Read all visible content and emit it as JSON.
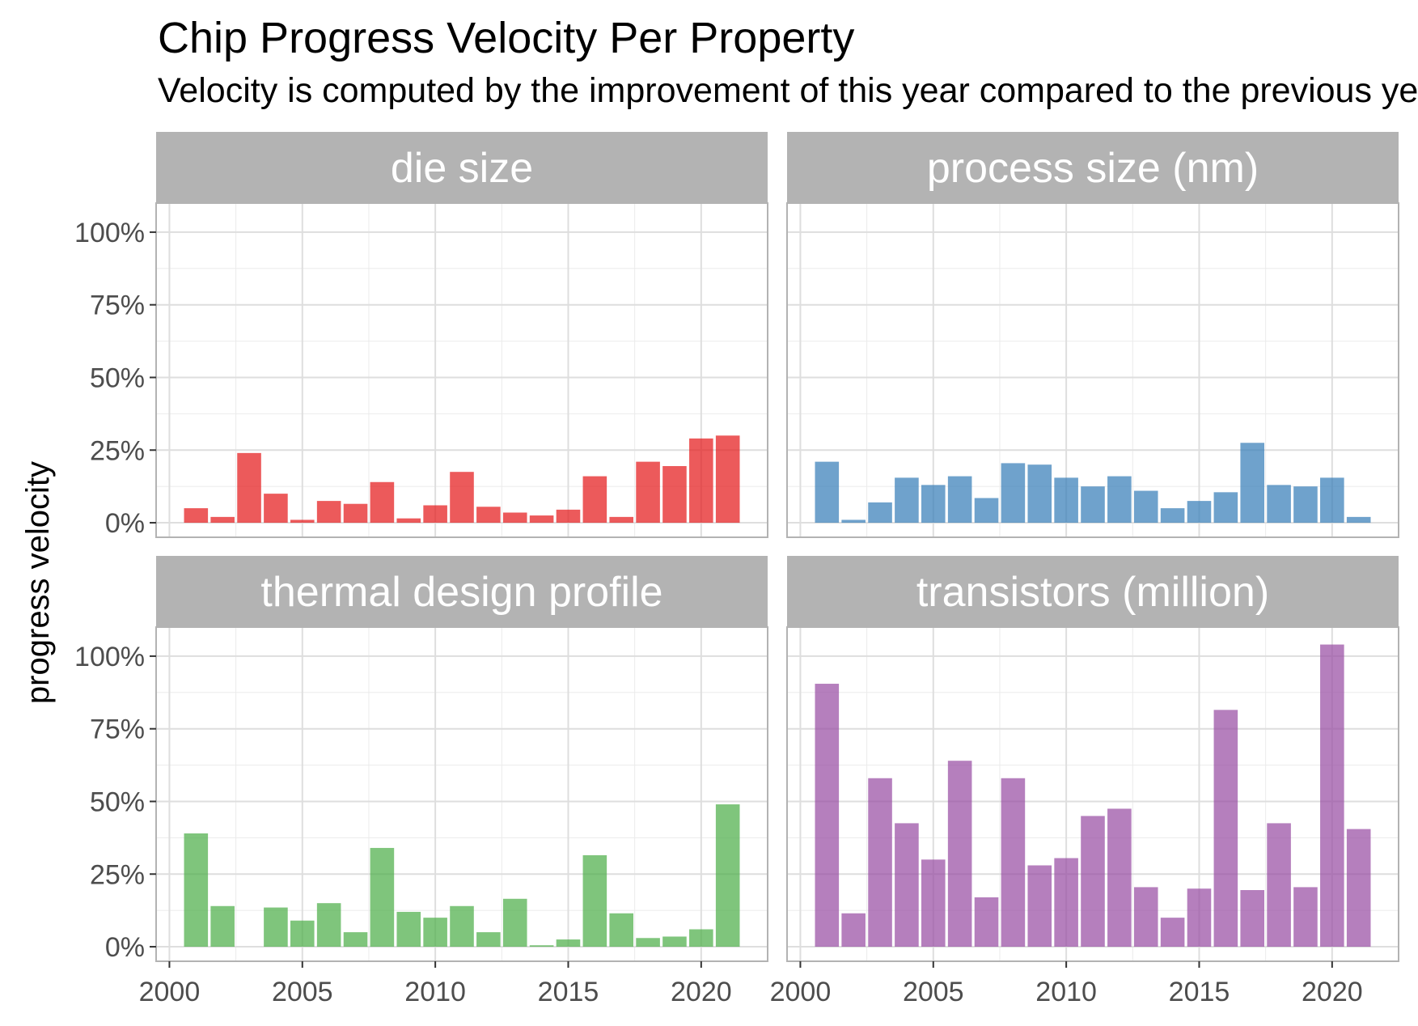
{
  "title": "Chip Progress Velocity Per Property",
  "subtitle": "Velocity is computed by the improvement of this year compared to the previous year",
  "chart_data": {
    "type": "bar",
    "layout": "facet-grid-2x2",
    "ylabel": "progress velocity",
    "xlabel": "",
    "xlim": [
      1999.5,
      2022.5
    ],
    "ylim": [
      -0.05,
      1.1
    ],
    "x_ticks": [
      2000,
      2005,
      2010,
      2015,
      2020
    ],
    "y_ticks": [
      {
        "value": 0,
        "label": "0%"
      },
      {
        "value": 0.25,
        "label": "25%"
      },
      {
        "value": 0.5,
        "label": "50%"
      },
      {
        "value": 0.75,
        "label": "75%"
      },
      {
        "value": 1.0,
        "label": "100%"
      }
    ],
    "grid": true,
    "legend": "none",
    "panels": [
      {
        "name": "die size",
        "color": "#E41A1C",
        "x": [
          2001,
          2002,
          2003,
          2004,
          2005,
          2006,
          2007,
          2008,
          2009,
          2010,
          2011,
          2012,
          2013,
          2014,
          2015,
          2016,
          2017,
          2018,
          2019,
          2020,
          2021
        ],
        "values": [
          0.05,
          0.02,
          0.24,
          0.1,
          0.01,
          0.075,
          0.065,
          0.14,
          0.015,
          0.06,
          0.175,
          0.055,
          0.035,
          0.025,
          0.045,
          0.16,
          0.02,
          0.21,
          0.195,
          0.29,
          0.3
        ]
      },
      {
        "name": "process size (nm)",
        "color": "#377EB8",
        "x": [
          2001,
          2002,
          2003,
          2004,
          2005,
          2006,
          2007,
          2008,
          2009,
          2010,
          2011,
          2012,
          2013,
          2014,
          2015,
          2016,
          2017,
          2018,
          2019,
          2020,
          2021
        ],
        "values": [
          0.21,
          0.01,
          0.07,
          0.155,
          0.13,
          0.16,
          0.085,
          0.205,
          0.2,
          0.155,
          0.125,
          0.16,
          0.11,
          0.05,
          0.075,
          0.105,
          0.275,
          0.13,
          0.125,
          0.155,
          0.02
        ]
      },
      {
        "name": "thermal design profile",
        "color": "#4DAF4A",
        "x": [
          2001,
          2002,
          2003,
          2004,
          2005,
          2006,
          2007,
          2008,
          2009,
          2010,
          2011,
          2012,
          2013,
          2014,
          2015,
          2016,
          2017,
          2018,
          2019,
          2020,
          2021
        ],
        "values": [
          0.39,
          0.14,
          0.0,
          0.135,
          0.09,
          0.15,
          0.05,
          0.34,
          0.12,
          0.1,
          0.14,
          0.05,
          0.165,
          0.005,
          0.025,
          0.315,
          0.115,
          0.03,
          0.035,
          0.06,
          0.49
        ]
      },
      {
        "name": "transistors (million)",
        "color": "#984EA3",
        "x": [
          2001,
          2002,
          2003,
          2004,
          2005,
          2006,
          2007,
          2008,
          2009,
          2010,
          2011,
          2012,
          2013,
          2014,
          2015,
          2016,
          2017,
          2018,
          2019,
          2020,
          2021
        ],
        "values": [
          0.905,
          0.115,
          0.58,
          0.425,
          0.3,
          0.64,
          0.17,
          0.58,
          0.28,
          0.305,
          0.45,
          0.475,
          0.205,
          0.1,
          0.2,
          0.815,
          0.195,
          0.425,
          0.205,
          1.04,
          0.405
        ]
      }
    ]
  }
}
